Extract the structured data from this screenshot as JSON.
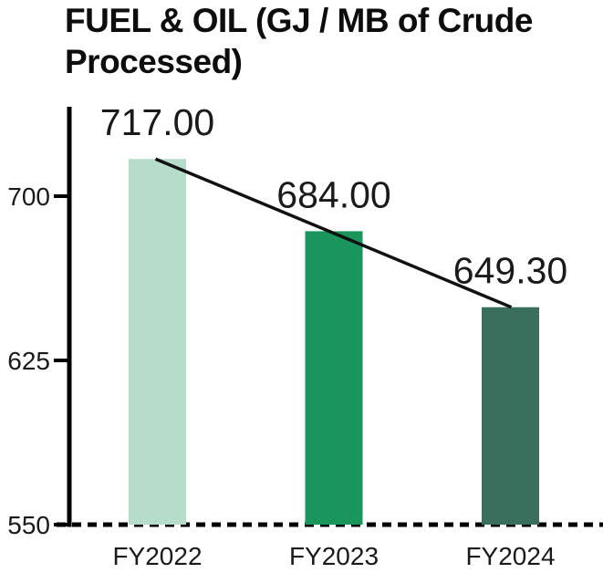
{
  "title": {
    "line1": "FUEL & OIL (GJ / MB of Crude",
    "line2": "Processed)",
    "full": "FUEL & OIL (GJ / MB of Crude Processed)"
  },
  "chart_data": {
    "type": "bar",
    "title": "FUEL & OIL (GJ / MB of Crude Processed)",
    "categories": [
      "FY2022",
      "FY2023",
      "FY2024"
    ],
    "values": [
      717.0,
      684.0,
      649.3
    ],
    "value_labels": [
      "717.00",
      "684.00",
      "649.30"
    ],
    "bar_colors": [
      "#b6dcca",
      "#1a965c",
      "#3a6f5e"
    ],
    "xlabel": "",
    "ylabel": "",
    "ylim": [
      550,
      740
    ],
    "yticks": [
      550,
      625,
      700
    ],
    "grid": false,
    "legend": false,
    "baseline_style": "dashed",
    "trend_line": {
      "from_category": "FY2022",
      "to_category": "FY2024",
      "color": "#111111"
    },
    "axis_color": "#000000",
    "text_color": "#1a1a1a"
  }
}
